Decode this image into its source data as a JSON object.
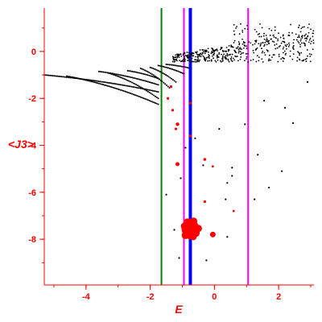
{
  "chart_data": {
    "type": "scatter",
    "xlabel": "E",
    "ylabel": "<J3>",
    "xlim": [
      -5.3,
      3.1
    ],
    "ylim": [
      -9.95,
      1.85
    ],
    "x_ticks": [
      -4,
      -2,
      0,
      2
    ],
    "y_ticks": [
      0,
      -2,
      -4,
      -6,
      -8
    ],
    "x_tick_labels": [
      "-4",
      "-2",
      "0",
      "2"
    ],
    "y_tick_labels": [
      "0",
      "-2",
      "-4",
      "-6",
      "-8"
    ],
    "grid": false,
    "colors": {
      "axes": "#ff0000",
      "points": "#000000",
      "highlight": "#ff0000",
      "line_green": "#008000",
      "line_blue": "#0000ff",
      "line_magenta": "#ff00ff"
    },
    "vertical_lines": [
      {
        "x": -1.65,
        "color": "#008000"
      },
      {
        "x": -0.95,
        "color": "#ff00ff"
      },
      {
        "x": -0.75,
        "color": "#0000ff"
      },
      {
        "x": 1.05,
        "color": "#ff00ff"
      }
    ],
    "branches": [
      {
        "x0": -5.3,
        "y0": -1.0,
        "x1": -1.75,
        "y1": -1.72
      },
      {
        "x0": -4.6,
        "y0": -1.05,
        "x1": -1.75,
        "y1": -2.25
      },
      {
        "x0": -3.6,
        "y0": -0.85,
        "x1": -1.75,
        "y1": -1.42
      },
      {
        "x0": -3.3,
        "y0": -0.92,
        "x1": -1.75,
        "y1": -2.0
      },
      {
        "x0": -2.7,
        "y0": -0.82,
        "x1": -1.75,
        "y1": -1.15
      },
      {
        "x0": -2.3,
        "y0": -0.72,
        "x1": -1.4,
        "y1": -1.55
      },
      {
        "x0": -2.0,
        "y0": -0.68,
        "x1": -1.2,
        "y1": -1.3
      },
      {
        "x0": -1.75,
        "y0": -0.6,
        "x1": -0.95,
        "y1": -0.95
      },
      {
        "x0": -1.5,
        "y0": -0.55,
        "x1": -0.8,
        "y1": -0.7
      }
    ],
    "dense_band": {
      "x": [
        -1.3,
        3.1
      ],
      "y": [
        -0.6,
        1.2
      ]
    },
    "black_points": [
      [
        -1.5,
        -6.1
      ],
      [
        -1.25,
        -7.6
      ],
      [
        -1.05,
        -5.4
      ],
      [
        -1.1,
        -8.8
      ],
      [
        -0.9,
        -4.1
      ],
      [
        -0.6,
        -3.7
      ],
      [
        -0.35,
        -4.85
      ],
      [
        0.15,
        -3.3
      ],
      [
        0.35,
        -6.3
      ],
      [
        0.4,
        -5.6
      ],
      [
        0.4,
        -7.9
      ],
      [
        0.55,
        -5.3
      ],
      [
        0.95,
        -3.1
      ],
      [
        1.25,
        -6.3
      ],
      [
        1.35,
        -4.4
      ],
      [
        1.55,
        -2.1
      ],
      [
        1.7,
        -5.8
      ],
      [
        2.1,
        -5.1
      ],
      [
        2.2,
        -2.4
      ],
      [
        2.45,
        -3.05
      ],
      [
        2.9,
        -1.3
      ],
      [
        0.55,
        -4.95
      ],
      [
        -0.25,
        -8.9
      ]
    ],
    "red_points": [
      {
        "x": -1.45,
        "y": -2.0,
        "r": 1.6
      },
      {
        "x": -1.35,
        "y": -1.5,
        "r": 1.6
      },
      {
        "x": -1.3,
        "y": -2.5,
        "r": 1.6
      },
      {
        "x": -1.2,
        "y": -3.3,
        "r": 1.6
      },
      {
        "x": -1.15,
        "y": -3.1,
        "r": 2.2
      },
      {
        "x": -1.15,
        "y": -4.8,
        "r": 2.5
      },
      {
        "x": -0.75,
        "y": -3.6,
        "r": 1.6
      },
      {
        "x": -0.75,
        "y": -2.2,
        "r": 1.6
      },
      {
        "x": -0.3,
        "y": -4.6,
        "r": 1.8
      },
      {
        "x": -0.3,
        "y": -6.4,
        "r": 1.6
      },
      {
        "x": -0.05,
        "y": -4.9,
        "r": 1.4
      },
      {
        "x": -0.05,
        "y": -7.8,
        "r": 3.5
      },
      {
        "x": 0.6,
        "y": -6.8,
        "r": 1.4
      },
      {
        "x": -0.75,
        "y": -7.55,
        "r": 11
      }
    ]
  }
}
